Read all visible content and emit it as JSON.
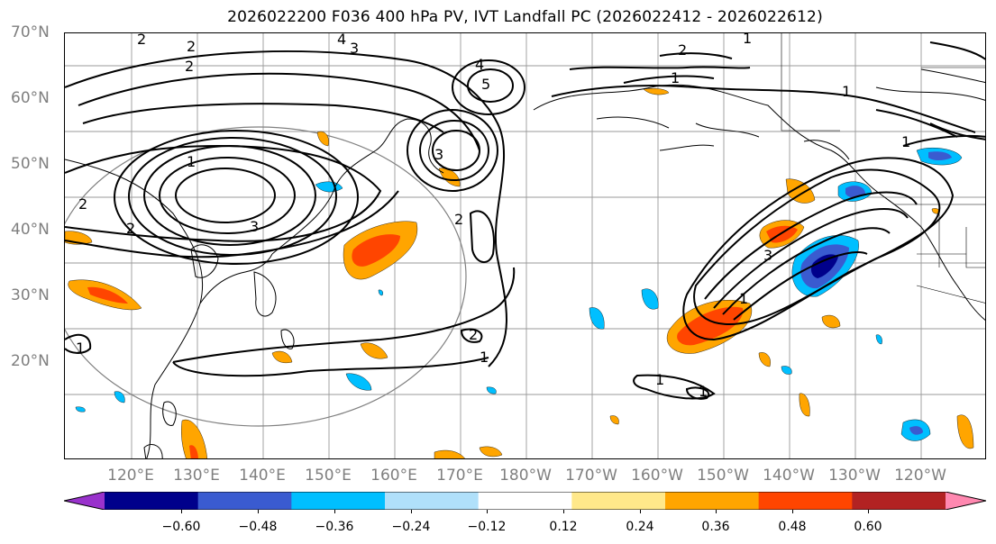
{
  "title": "2026022200 F036 400 hPa PV, IVT Landfall PC (2026022412 - 2026022612)",
  "lat_labels": [
    "70°N",
    "60°N",
    "50°N",
    "40°N",
    "30°N",
    "20°N"
  ],
  "lon_labels": [
    "120°E",
    "130°E",
    "140°E",
    "150°E",
    "160°E",
    "170°E",
    "180°W",
    "170°W",
    "160°W",
    "150°W",
    "140°W",
    "130°W",
    "120°W"
  ],
  "colorbar": {
    "ticks": [
      "−0.60",
      "−0.48",
      "−0.36",
      "−0.24",
      "−0.12",
      "0.12",
      "0.24",
      "0.36",
      "0.48",
      "0.60"
    ],
    "colors": [
      "#9932cc",
      "#00008b",
      "#3a5bd0",
      "#00bfff",
      "#b0e0fa",
      "#ffffff",
      "#ffe88a",
      "#ffa500",
      "#ff4500",
      "#b22222",
      "#ff88b0"
    ]
  },
  "contour_labels": [
    "1",
    "2",
    "3",
    "4",
    "5"
  ],
  "colors": {
    "contour": "#000000",
    "grid": "#999999",
    "coast": "#000000",
    "circle": "#808080"
  }
}
